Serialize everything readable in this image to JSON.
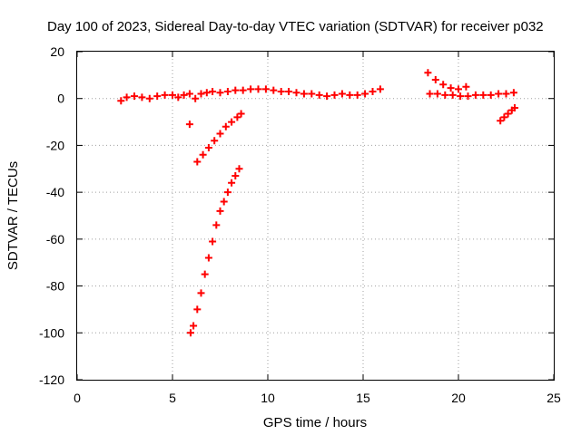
{
  "chart_data": {
    "type": "scatter",
    "title": "Day 100 of 2023, Sidereal Day-to-day VTEC variation (SDTVAR) for receiver p032",
    "xlabel": "GPS time / hours",
    "ylabel": "SDTVAR / TECUs",
    "xlim": [
      0,
      25
    ],
    "ylim": [
      -120,
      20
    ],
    "grid": true,
    "legend": "none",
    "xticks": [
      0,
      5,
      10,
      15,
      20,
      25
    ],
    "yticks": [
      -120,
      -100,
      -80,
      -60,
      -40,
      -20,
      0,
      20
    ],
    "marker": "plus",
    "color": "#ff0000",
    "series": [
      {
        "name": "near-zero band",
        "points": [
          [
            2.3,
            -1
          ],
          [
            2.6,
            0.5
          ],
          [
            3.0,
            1
          ],
          [
            3.4,
            0.5
          ],
          [
            3.8,
            0
          ],
          [
            4.2,
            1
          ],
          [
            4.6,
            1.5
          ],
          [
            5.0,
            1.5
          ],
          [
            5.3,
            0.5
          ],
          [
            5.6,
            1.5
          ],
          [
            5.9,
            2
          ],
          [
            6.2,
            0
          ],
          [
            6.5,
            2
          ],
          [
            6.8,
            2.5
          ],
          [
            7.1,
            3
          ],
          [
            7.5,
            2.5
          ],
          [
            7.9,
            3
          ],
          [
            8.3,
            3.5
          ],
          [
            8.7,
            3.5
          ],
          [
            9.1,
            4
          ],
          [
            9.5,
            4
          ],
          [
            9.9,
            4
          ],
          [
            10.3,
            3.5
          ],
          [
            10.7,
            3
          ],
          [
            11.1,
            3
          ],
          [
            11.5,
            2.5
          ],
          [
            11.9,
            2
          ],
          [
            12.3,
            2
          ],
          [
            12.7,
            1.5
          ],
          [
            13.1,
            1
          ],
          [
            13.5,
            1.5
          ],
          [
            13.9,
            2
          ],
          [
            14.3,
            1.5
          ],
          [
            14.7,
            1.5
          ],
          [
            15.1,
            2
          ],
          [
            15.5,
            3
          ],
          [
            15.9,
            4
          ],
          [
            18.5,
            2
          ],
          [
            18.9,
            2
          ],
          [
            19.3,
            1.5
          ],
          [
            19.7,
            1.5
          ],
          [
            20.1,
            1
          ],
          [
            20.5,
            1
          ],
          [
            20.9,
            1.5
          ],
          [
            21.3,
            1.5
          ],
          [
            21.7,
            1.5
          ],
          [
            22.1,
            2
          ],
          [
            22.5,
            2
          ],
          [
            22.9,
            2.5
          ]
        ]
      },
      {
        "name": "late-evening excursion",
        "points": [
          [
            18.4,
            11
          ],
          [
            18.8,
            8
          ],
          [
            19.2,
            6
          ],
          [
            19.6,
            4.5
          ],
          [
            20.0,
            4
          ],
          [
            20.4,
            5
          ]
        ]
      },
      {
        "name": "early dip",
        "points": [
          [
            6.3,
            -27
          ],
          [
            6.6,
            -24
          ],
          [
            6.9,
            -21
          ],
          [
            7.2,
            -18
          ],
          [
            7.5,
            -15
          ],
          [
            7.8,
            -12
          ],
          [
            8.1,
            -10
          ],
          [
            8.4,
            -8
          ],
          [
            8.6,
            -6.5
          ]
        ]
      },
      {
        "name": "isolated point",
        "points": [
          [
            5.9,
            -11
          ]
        ]
      },
      {
        "name": "deep dip",
        "points": [
          [
            5.95,
            -100
          ],
          [
            6.1,
            -97
          ],
          [
            6.3,
            -90
          ],
          [
            6.5,
            -83
          ],
          [
            6.7,
            -75
          ],
          [
            6.9,
            -68
          ],
          [
            7.1,
            -61
          ],
          [
            7.3,
            -54
          ],
          [
            7.5,
            -48
          ],
          [
            7.7,
            -44
          ],
          [
            7.9,
            -40
          ],
          [
            8.1,
            -36
          ],
          [
            8.3,
            -33
          ],
          [
            8.5,
            -30
          ]
        ]
      },
      {
        "name": "late dip",
        "points": [
          [
            22.2,
            -9.5
          ],
          [
            22.4,
            -8
          ],
          [
            22.6,
            -6.5
          ],
          [
            22.8,
            -5
          ],
          [
            22.95,
            -4
          ]
        ]
      }
    ]
  }
}
